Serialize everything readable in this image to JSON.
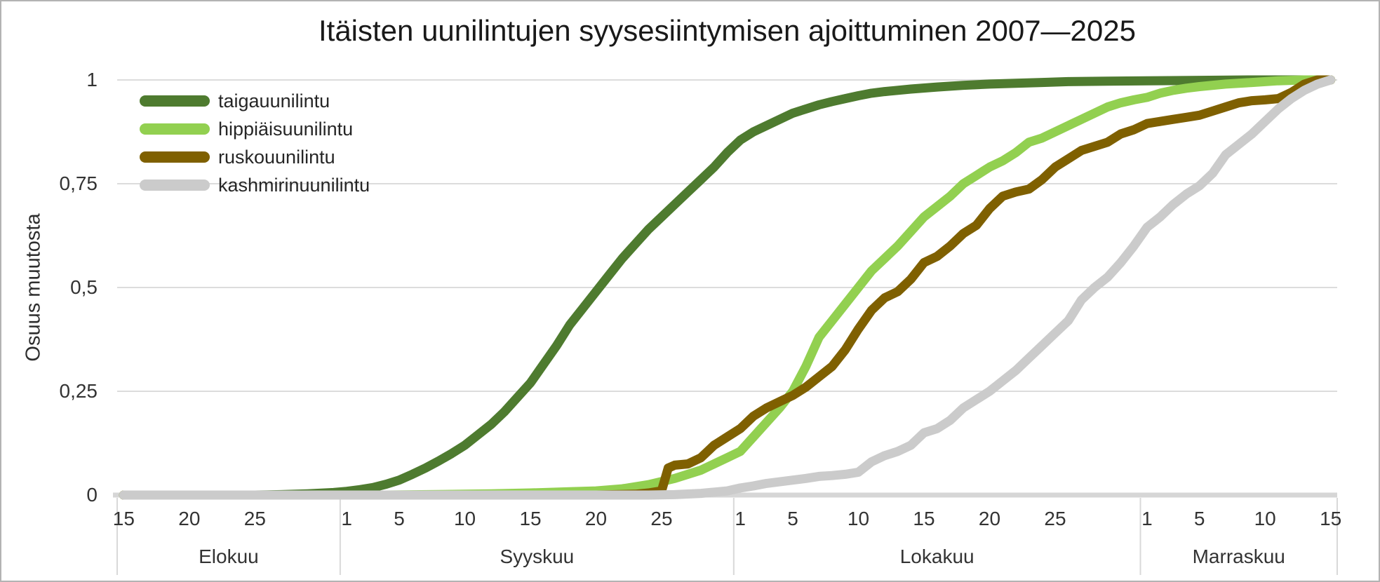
{
  "chart_data": {
    "type": "line",
    "title": "Itäisten uunilintujen syysesiintymisen ajoittuminen 2007—2025",
    "ylabel": "Osuus muutosta",
    "xlabel": "",
    "x_unit": "days since Aug 15",
    "ylim": [
      0,
      1
    ],
    "grid": "horizontal",
    "legend_position": "top-left-inside",
    "colors": {
      "gridline": "#dcdcdc",
      "axis_line": "#d6d6d6",
      "separator": "#d9d9d9",
      "text": "#333333"
    },
    "y_ticks": [
      {
        "v": 1,
        "label": "1"
      },
      {
        "v": 0.75,
        "label": "0,75"
      },
      {
        "v": 0.5,
        "label": "0,5"
      },
      {
        "v": 0.25,
        "label": "0,25"
      },
      {
        "v": 0,
        "label": "0"
      }
    ],
    "x_ticks": [
      {
        "d": 0,
        "label": "15"
      },
      {
        "d": 5,
        "label": "20"
      },
      {
        "d": 10,
        "label": "25"
      },
      {
        "d": 17,
        "label": "1"
      },
      {
        "d": 21,
        "label": "5"
      },
      {
        "d": 26,
        "label": "10"
      },
      {
        "d": 31,
        "label": "15"
      },
      {
        "d": 36,
        "label": "20"
      },
      {
        "d": 41,
        "label": "25"
      },
      {
        "d": 47,
        "label": "1"
      },
      {
        "d": 51,
        "label": "5"
      },
      {
        "d": 56,
        "label": "10"
      },
      {
        "d": 61,
        "label": "15"
      },
      {
        "d": 66,
        "label": "20"
      },
      {
        "d": 71,
        "label": "25"
      },
      {
        "d": 78,
        "label": "1"
      },
      {
        "d": 82,
        "label": "5"
      },
      {
        "d": 87,
        "label": "10"
      },
      {
        "d": 92,
        "label": "15"
      }
    ],
    "month_groups": [
      {
        "label": "Elokuu",
        "start": 0,
        "end": 17
      },
      {
        "label": "Syyskuu",
        "start": 17,
        "end": 47
      },
      {
        "label": "Lokakuu",
        "start": 47,
        "end": 78
      },
      {
        "label": "Marraskuu",
        "start": 78,
        "end": 93
      }
    ],
    "series": [
      {
        "name": "taigauunilintu",
        "color": "#4e7b2f",
        "points": [
          [
            0,
            0
          ],
          [
            5,
            0
          ],
          [
            10,
            0
          ],
          [
            12,
            0.001
          ],
          [
            14,
            0.003
          ],
          [
            16,
            0.006
          ],
          [
            17,
            0.009
          ],
          [
            18,
            0.013
          ],
          [
            19,
            0.018
          ],
          [
            20,
            0.026
          ],
          [
            21,
            0.036
          ],
          [
            22,
            0.05
          ],
          [
            23,
            0.065
          ],
          [
            24,
            0.082
          ],
          [
            25,
            0.1
          ],
          [
            26,
            0.12
          ],
          [
            27,
            0.145
          ],
          [
            28,
            0.17
          ],
          [
            29,
            0.2
          ],
          [
            30,
            0.235
          ],
          [
            31,
            0.27
          ],
          [
            32,
            0.315
          ],
          [
            33,
            0.36
          ],
          [
            34,
            0.41
          ],
          [
            35,
            0.45
          ],
          [
            36,
            0.49
          ],
          [
            37,
            0.53
          ],
          [
            38,
            0.57
          ],
          [
            39,
            0.605
          ],
          [
            40,
            0.64
          ],
          [
            41,
            0.67
          ],
          [
            42,
            0.7
          ],
          [
            43,
            0.73
          ],
          [
            44,
            0.76
          ],
          [
            45,
            0.79
          ],
          [
            46,
            0.825
          ],
          [
            47,
            0.855
          ],
          [
            48,
            0.875
          ],
          [
            49,
            0.89
          ],
          [
            50,
            0.905
          ],
          [
            51,
            0.92
          ],
          [
            52,
            0.93
          ],
          [
            53,
            0.94
          ],
          [
            54,
            0.948
          ],
          [
            55,
            0.955
          ],
          [
            56,
            0.962
          ],
          [
            57,
            0.968
          ],
          [
            58,
            0.972
          ],
          [
            60,
            0.978
          ],
          [
            62,
            0.983
          ],
          [
            64,
            0.987
          ],
          [
            66,
            0.99
          ],
          [
            68,
            0.992
          ],
          [
            70,
            0.994
          ],
          [
            72,
            0.996
          ],
          [
            75,
            0.997
          ],
          [
            78,
            0.998
          ],
          [
            82,
            0.999
          ],
          [
            86,
            1
          ],
          [
            92,
            1
          ]
        ]
      },
      {
        "name": "hippiäisuunilintu",
        "color": "#92d050",
        "points": [
          [
            0,
            0
          ],
          [
            10,
            0
          ],
          [
            20,
            0
          ],
          [
            26,
            0.002
          ],
          [
            28,
            0.003
          ],
          [
            31,
            0.005
          ],
          [
            34,
            0.008
          ],
          [
            36,
            0.01
          ],
          [
            38,
            0.015
          ],
          [
            40,
            0.025
          ],
          [
            42,
            0.04
          ],
          [
            44,
            0.06
          ],
          [
            45,
            0.075
          ],
          [
            46,
            0.09
          ],
          [
            47,
            0.105
          ],
          [
            48,
            0.14
          ],
          [
            49,
            0.175
          ],
          [
            50,
            0.21
          ],
          [
            51,
            0.25
          ],
          [
            52,
            0.31
          ],
          [
            53,
            0.38
          ],
          [
            54,
            0.42
          ],
          [
            55,
            0.46
          ],
          [
            56,
            0.5
          ],
          [
            57,
            0.54
          ],
          [
            58,
            0.57
          ],
          [
            59,
            0.6
          ],
          [
            60,
            0.635
          ],
          [
            61,
            0.67
          ],
          [
            62,
            0.695
          ],
          [
            63,
            0.72
          ],
          [
            64,
            0.75
          ],
          [
            65,
            0.77
          ],
          [
            66,
            0.79
          ],
          [
            67,
            0.805
          ],
          [
            68,
            0.825
          ],
          [
            69,
            0.85
          ],
          [
            70,
            0.86
          ],
          [
            71,
            0.875
          ],
          [
            72,
            0.89
          ],
          [
            73,
            0.905
          ],
          [
            74,
            0.92
          ],
          [
            75,
            0.935
          ],
          [
            76,
            0.945
          ],
          [
            77,
            0.952
          ],
          [
            78,
            0.958
          ],
          [
            79,
            0.968
          ],
          [
            80,
            0.975
          ],
          [
            81,
            0.98
          ],
          [
            82,
            0.984
          ],
          [
            84,
            0.99
          ],
          [
            86,
            0.994
          ],
          [
            88,
            0.998
          ],
          [
            90,
            1
          ],
          [
            92,
            1
          ]
        ]
      },
      {
        "name": "ruskouunilintu",
        "color": "#7f6000",
        "points": [
          [
            0,
            0
          ],
          [
            20,
            0
          ],
          [
            30,
            0
          ],
          [
            36,
            0
          ],
          [
            39,
            0.002
          ],
          [
            40,
            0.005
          ],
          [
            41,
            0.01
          ],
          [
            41.5,
            0.065
          ],
          [
            42,
            0.072
          ],
          [
            43,
            0.075
          ],
          [
            44,
            0.09
          ],
          [
            45,
            0.12
          ],
          [
            46,
            0.14
          ],
          [
            47,
            0.16
          ],
          [
            48,
            0.19
          ],
          [
            49,
            0.21
          ],
          [
            50,
            0.225
          ],
          [
            51,
            0.24
          ],
          [
            52,
            0.26
          ],
          [
            53,
            0.285
          ],
          [
            54,
            0.31
          ],
          [
            55,
            0.35
          ],
          [
            56,
            0.4
          ],
          [
            57,
            0.445
          ],
          [
            58,
            0.475
          ],
          [
            59,
            0.49
          ],
          [
            60,
            0.52
          ],
          [
            61,
            0.56
          ],
          [
            62,
            0.575
          ],
          [
            63,
            0.6
          ],
          [
            64,
            0.63
          ],
          [
            65,
            0.65
          ],
          [
            66,
            0.69
          ],
          [
            67,
            0.72
          ],
          [
            68,
            0.73
          ],
          [
            69,
            0.737
          ],
          [
            70,
            0.76
          ],
          [
            71,
            0.79
          ],
          [
            72,
            0.81
          ],
          [
            73,
            0.83
          ],
          [
            74,
            0.84
          ],
          [
            75,
            0.85
          ],
          [
            76,
            0.87
          ],
          [
            77,
            0.88
          ],
          [
            78,
            0.895
          ],
          [
            79,
            0.9
          ],
          [
            80,
            0.905
          ],
          [
            81,
            0.91
          ],
          [
            82,
            0.915
          ],
          [
            83,
            0.925
          ],
          [
            84,
            0.935
          ],
          [
            85,
            0.945
          ],
          [
            86,
            0.95
          ],
          [
            87,
            0.952
          ],
          [
            88,
            0.955
          ],
          [
            89,
            0.97
          ],
          [
            90,
            0.99
          ],
          [
            91,
            1
          ],
          [
            92,
            1
          ]
        ]
      },
      {
        "name": "kashmirinuunilintu",
        "color": "#cbcbcb",
        "points": [
          [
            0,
            0
          ],
          [
            20,
            0
          ],
          [
            30,
            0
          ],
          [
            40,
            0
          ],
          [
            42,
            0.001
          ],
          [
            44,
            0.004
          ],
          [
            46,
            0.01
          ],
          [
            47,
            0.017
          ],
          [
            48,
            0.022
          ],
          [
            49,
            0.028
          ],
          [
            50,
            0.032
          ],
          [
            51,
            0.036
          ],
          [
            52,
            0.04
          ],
          [
            53,
            0.045
          ],
          [
            54,
            0.047
          ],
          [
            55,
            0.05
          ],
          [
            56,
            0.055
          ],
          [
            57,
            0.08
          ],
          [
            58,
            0.095
          ],
          [
            59,
            0.105
          ],
          [
            60,
            0.12
          ],
          [
            61,
            0.15
          ],
          [
            62,
            0.16
          ],
          [
            63,
            0.18
          ],
          [
            64,
            0.21
          ],
          [
            65,
            0.23
          ],
          [
            66,
            0.25
          ],
          [
            67,
            0.275
          ],
          [
            68,
            0.3
          ],
          [
            69,
            0.33
          ],
          [
            70,
            0.36
          ],
          [
            71,
            0.39
          ],
          [
            72,
            0.42
          ],
          [
            73,
            0.47
          ],
          [
            74,
            0.5
          ],
          [
            75,
            0.525
          ],
          [
            76,
            0.56
          ],
          [
            77,
            0.6
          ],
          [
            78,
            0.645
          ],
          [
            79,
            0.67
          ],
          [
            80,
            0.7
          ],
          [
            81,
            0.725
          ],
          [
            82,
            0.745
          ],
          [
            83,
            0.775
          ],
          [
            84,
            0.82
          ],
          [
            85,
            0.845
          ],
          [
            86,
            0.87
          ],
          [
            87,
            0.9
          ],
          [
            88,
            0.93
          ],
          [
            89,
            0.955
          ],
          [
            90,
            0.975
          ],
          [
            91,
            0.99
          ],
          [
            92,
            1
          ]
        ]
      }
    ]
  }
}
